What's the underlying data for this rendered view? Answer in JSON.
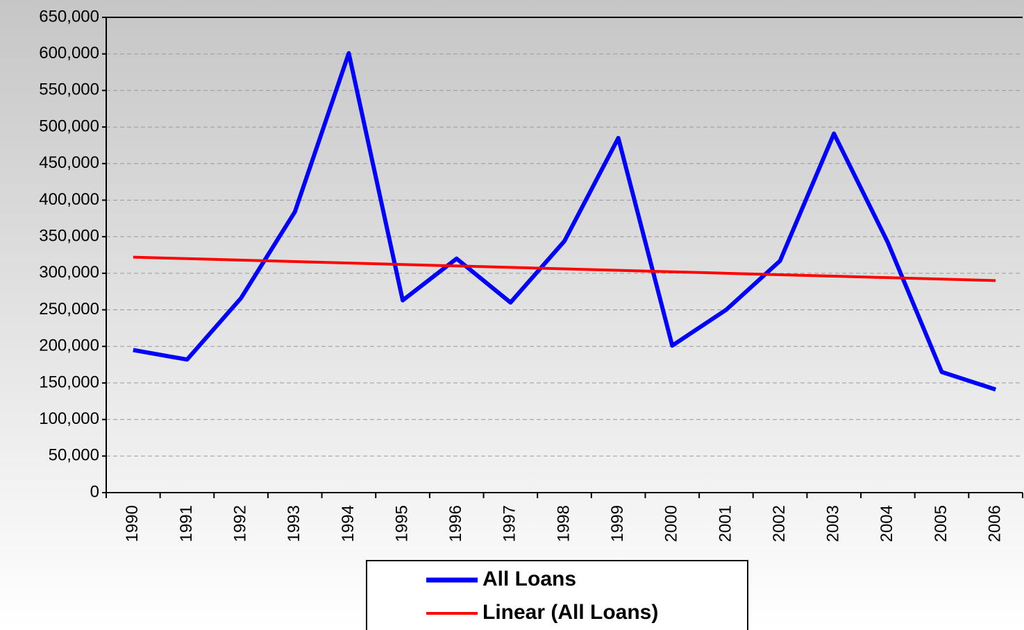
{
  "chart_data": {
    "type": "line",
    "categories": [
      "1990",
      "1991",
      "1992",
      "1993",
      "1994",
      "1995",
      "1996",
      "1997",
      "1998",
      "1999",
      "2000",
      "2001",
      "2002",
      "2003",
      "2004",
      "2005",
      "2006"
    ],
    "series": [
      {
        "name": "All Loans",
        "color": "#0000ff",
        "values": [
          195000,
          182000,
          266000,
          384000,
          601000,
          263000,
          320000,
          260000,
          344000,
          485000,
          201000,
          250000,
          317000,
          491000,
          342000,
          165000,
          141000
        ]
      },
      {
        "name": "Linear (All Loans)",
        "color": "#ff0000",
        "values": [
          322000,
          320000,
          318000,
          316000,
          314000,
          312000,
          310000,
          308000,
          306000,
          304000,
          302000,
          300000,
          298000,
          296000,
          294000,
          292000,
          290000
        ]
      }
    ],
    "ylim": [
      0,
      650000
    ],
    "yticks": [
      {
        "value": 0,
        "label": "0"
      },
      {
        "value": 50000,
        "label": "50,000"
      },
      {
        "value": 100000,
        "label": "100,000"
      },
      {
        "value": 150000,
        "label": "150,000"
      },
      {
        "value": 200000,
        "label": "200,000"
      },
      {
        "value": 250000,
        "label": "250,000"
      },
      {
        "value": 300000,
        "label": "300,000"
      },
      {
        "value": 350000,
        "label": "350,000"
      },
      {
        "value": 400000,
        "label": "400,000"
      },
      {
        "value": 450000,
        "label": "450,000"
      },
      {
        "value": 500000,
        "label": "500,000"
      },
      {
        "value": 550000,
        "label": "550,000"
      },
      {
        "value": 600000,
        "label": "600,000"
      },
      {
        "value": 650000,
        "label": "650,000"
      }
    ],
    "grid": true
  }
}
